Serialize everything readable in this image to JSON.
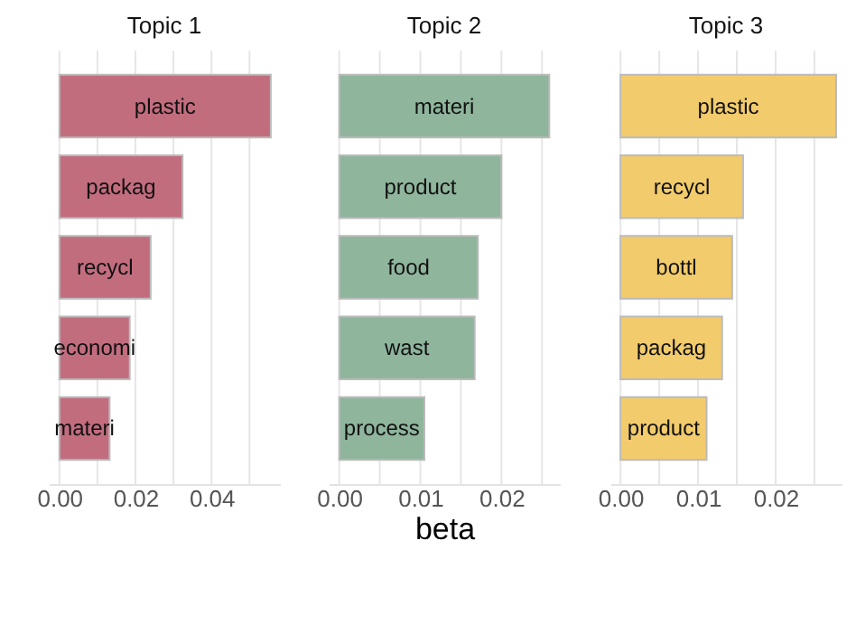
{
  "chart_data": [
    {
      "type": "bar",
      "orientation": "horizontal",
      "title": "Topic 1",
      "categories": [
        "plastic",
        "packag",
        "recycl",
        "economi",
        "materi"
      ],
      "values": [
        0.0556,
        0.0324,
        0.024,
        0.0185,
        0.0132
      ],
      "color": "#c26d7e",
      "xlim": [
        -0.0028,
        0.058
      ],
      "xticks": [
        {
          "value": 0,
          "label": "0.00"
        },
        {
          "value": 0.01,
          "label": null
        },
        {
          "value": 0.02,
          "label": "0.02"
        },
        {
          "value": 0.03,
          "label": null
        },
        {
          "value": 0.04,
          "label": "0.04"
        },
        {
          "value": 0.05,
          "label": null
        }
      ],
      "grid": "x",
      "tick_labels": "x"
    },
    {
      "type": "bar",
      "orientation": "horizontal",
      "title": "Topic 2",
      "xlabel": "beta",
      "categories": [
        "materi",
        "product",
        "food",
        "wast",
        "process"
      ],
      "values": [
        0.0259,
        0.02,
        0.0171,
        0.0167,
        0.0105
      ],
      "color": "#8fb59c",
      "xlim": [
        -0.0013,
        0.0272
      ],
      "xticks": [
        {
          "value": 0,
          "label": "0.00"
        },
        {
          "value": 0.005,
          "label": null
        },
        {
          "value": 0.01,
          "label": "0.01"
        },
        {
          "value": 0.015,
          "label": null
        },
        {
          "value": 0.02,
          "label": "0.02"
        },
        {
          "value": 0.025,
          "label": null
        }
      ],
      "grid": "x",
      "tick_labels": "x"
    },
    {
      "type": "bar",
      "orientation": "horizontal",
      "title": "Topic 3",
      "categories": [
        "plastic",
        "recycl",
        "bottl",
        "packag",
        "product"
      ],
      "values": [
        0.0278,
        0.0158,
        0.0144,
        0.0131,
        0.0111
      ],
      "color": "#f2cb6c",
      "xlim": [
        -0.0013,
        0.0285
      ],
      "xticks": [
        {
          "value": 0,
          "label": "0.00"
        },
        {
          "value": 0.005,
          "label": null
        },
        {
          "value": 0.01,
          "label": "0.01"
        },
        {
          "value": 0.015,
          "label": null
        },
        {
          "value": 0.02,
          "label": "0.02"
        },
        {
          "value": 0.025,
          "label": null
        }
      ],
      "grid": "x",
      "tick_labels": "x"
    }
  ]
}
